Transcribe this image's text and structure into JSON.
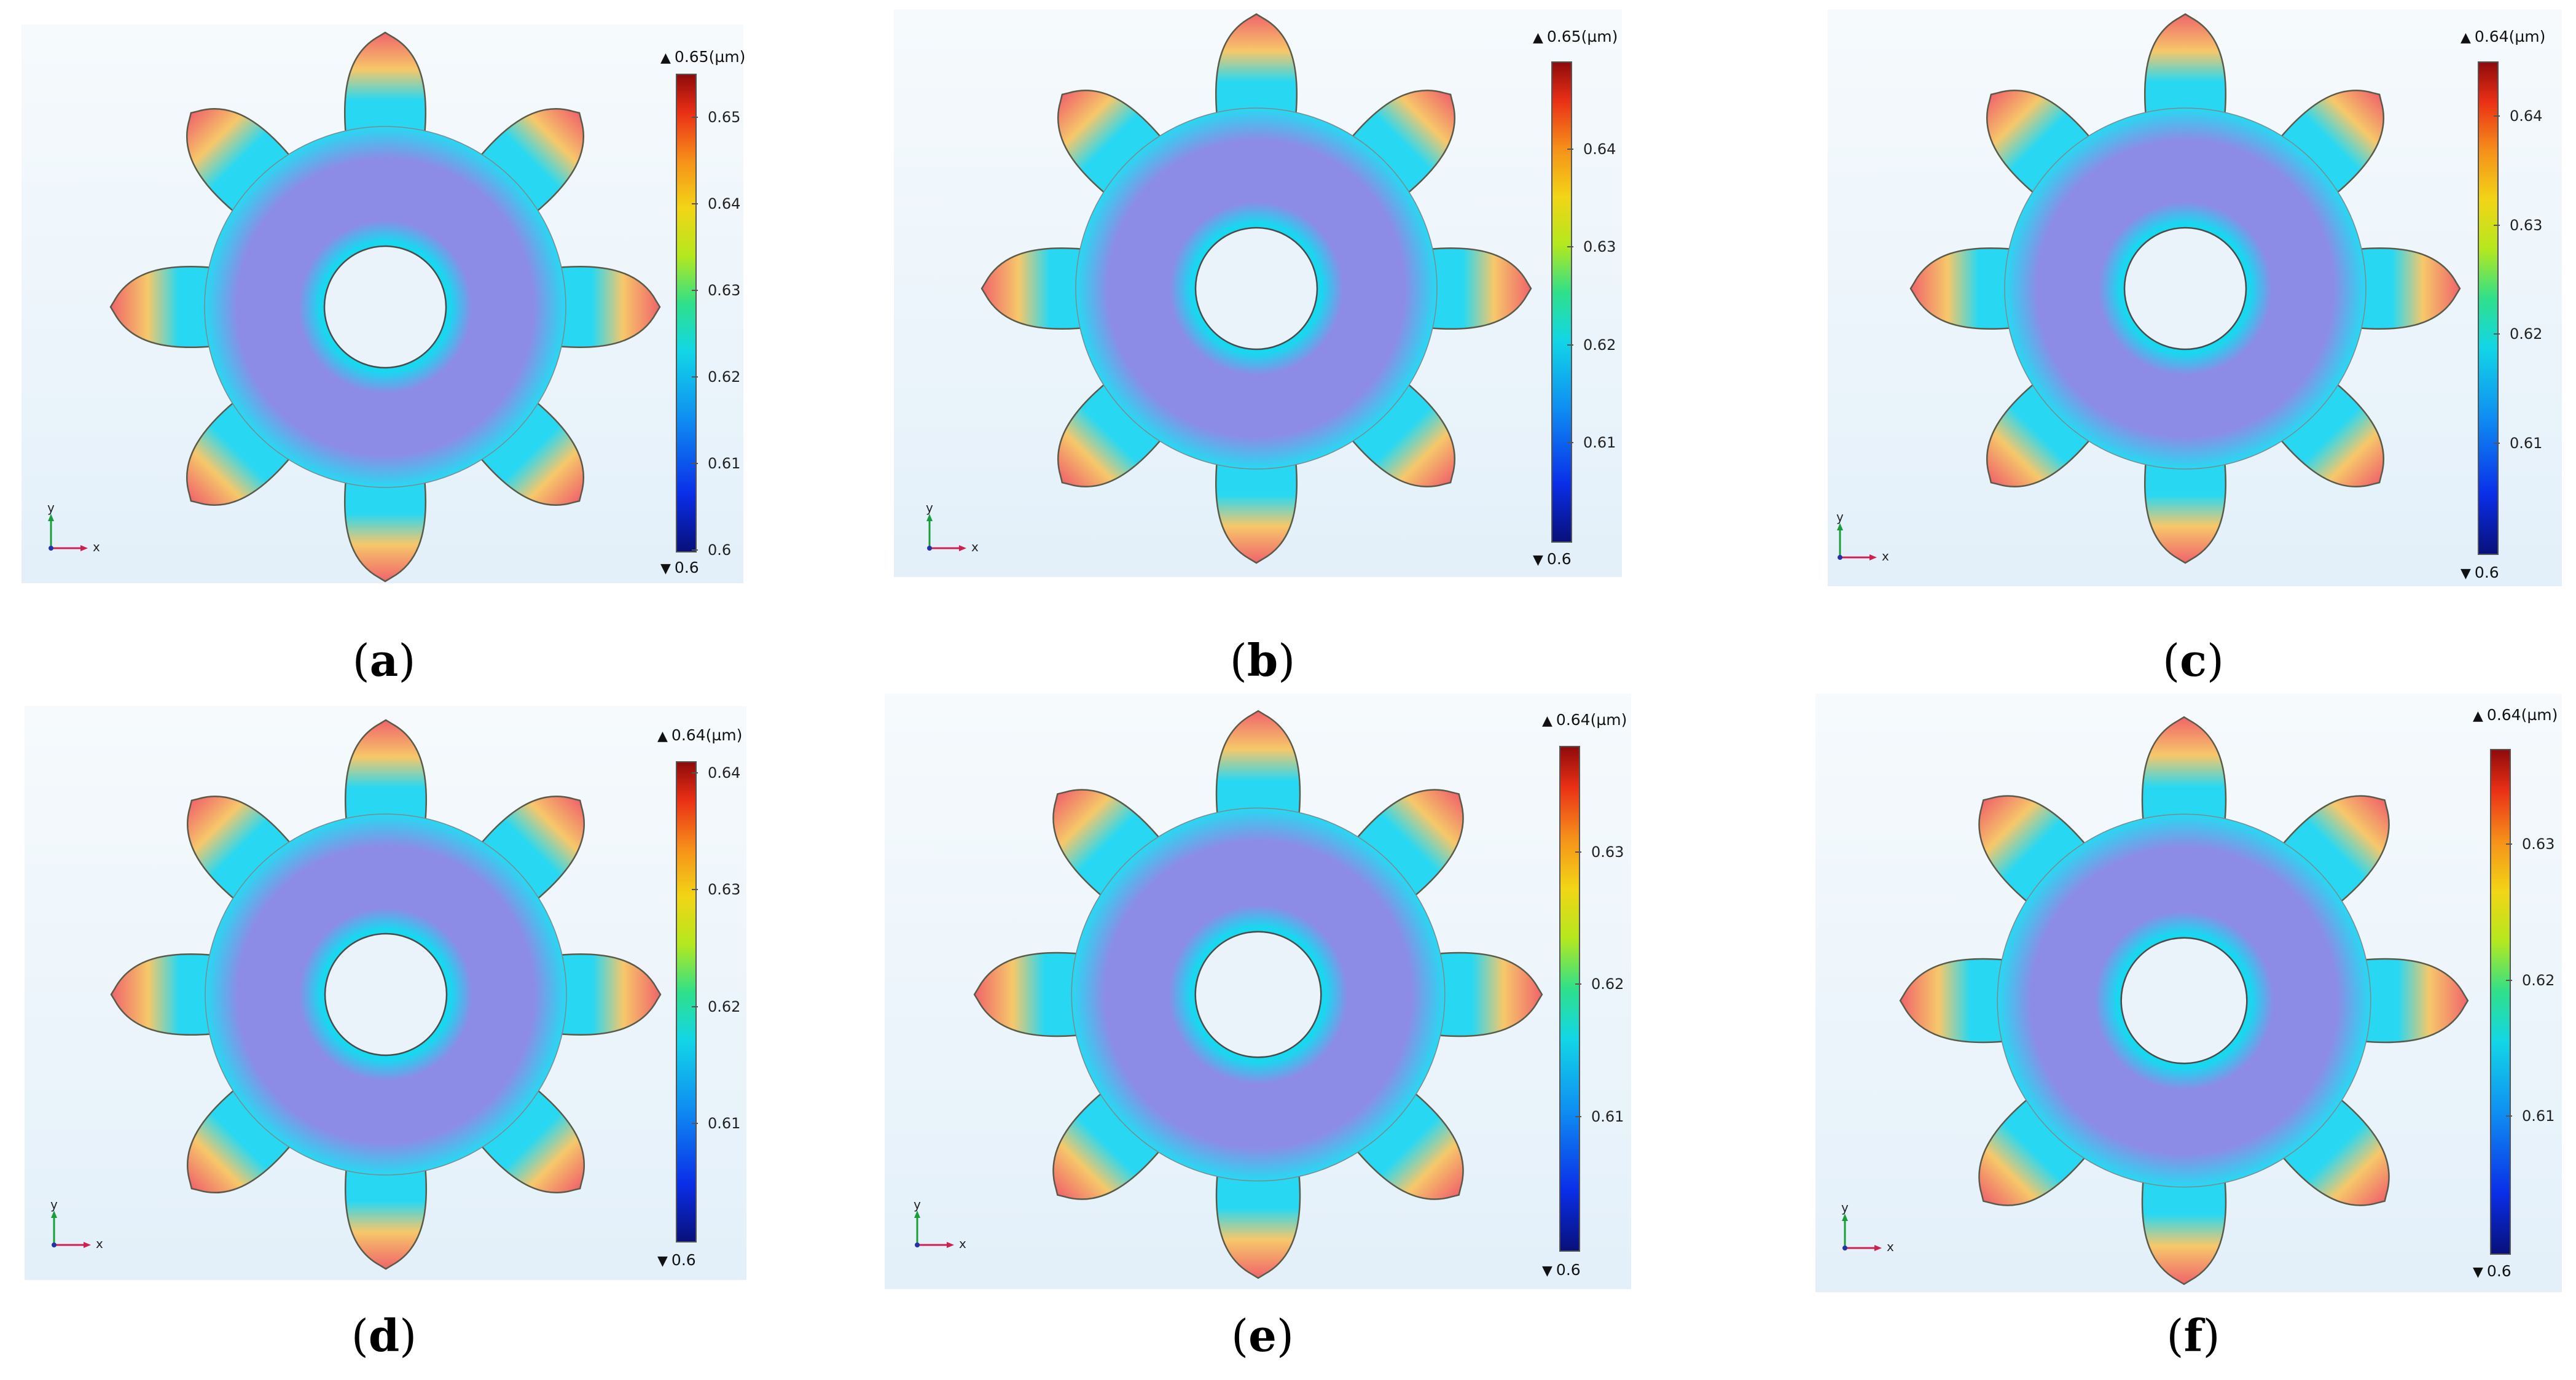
{
  "panels": [
    {
      "caption_letter": "a",
      "max_label": "0.65(µm)",
      "min_label": "0.6",
      "ticks": [
        "0.65",
        "0.64",
        "0.63",
        "0.62",
        "0.61",
        "0.6"
      ],
      "range": [
        0.6,
        0.655
      ]
    },
    {
      "caption_letter": "b",
      "max_label": "0.65(µm)",
      "min_label": "0.6",
      "ticks": [
        "0.64",
        "0.63",
        "0.62",
        "0.61"
      ],
      "range": [
        0.6,
        0.649
      ]
    },
    {
      "caption_letter": "c",
      "max_label": "0.64(µm)",
      "min_label": "0.6",
      "ticks": [
        "0.64",
        "0.63",
        "0.62",
        "0.61"
      ],
      "range": [
        0.6,
        0.645
      ]
    },
    {
      "caption_letter": "d",
      "max_label": "0.64(µm)",
      "min_label": "0.6",
      "ticks": [
        "0.64",
        "0.63",
        "0.62",
        "0.61"
      ],
      "range": [
        0.6,
        0.641
      ]
    },
    {
      "caption_letter": "e",
      "max_label": "0.64(µm)",
      "min_label": "0.6",
      "ticks": [
        "0.63",
        "0.62",
        "0.61"
      ],
      "range": [
        0.6,
        0.638
      ]
    },
    {
      "caption_letter": "f",
      "max_label": "0.64(µm)",
      "min_label": "0.6",
      "ticks": [
        "0.63",
        "0.62",
        "0.61"
      ],
      "range": [
        0.6,
        0.637
      ]
    }
  ],
  "axis_labels": {
    "y": "y",
    "x": "x"
  },
  "caption_parens": {
    "open": "(",
    "close": ")"
  },
  "colors": {
    "tooth_tip": "#f0646a",
    "tooth_mid": "#f6c86a",
    "ring_outer": "#28d8f2",
    "body": "#8c8ce6",
    "hub_ring": "#18d8f0",
    "background": "#eaf3fa"
  }
}
